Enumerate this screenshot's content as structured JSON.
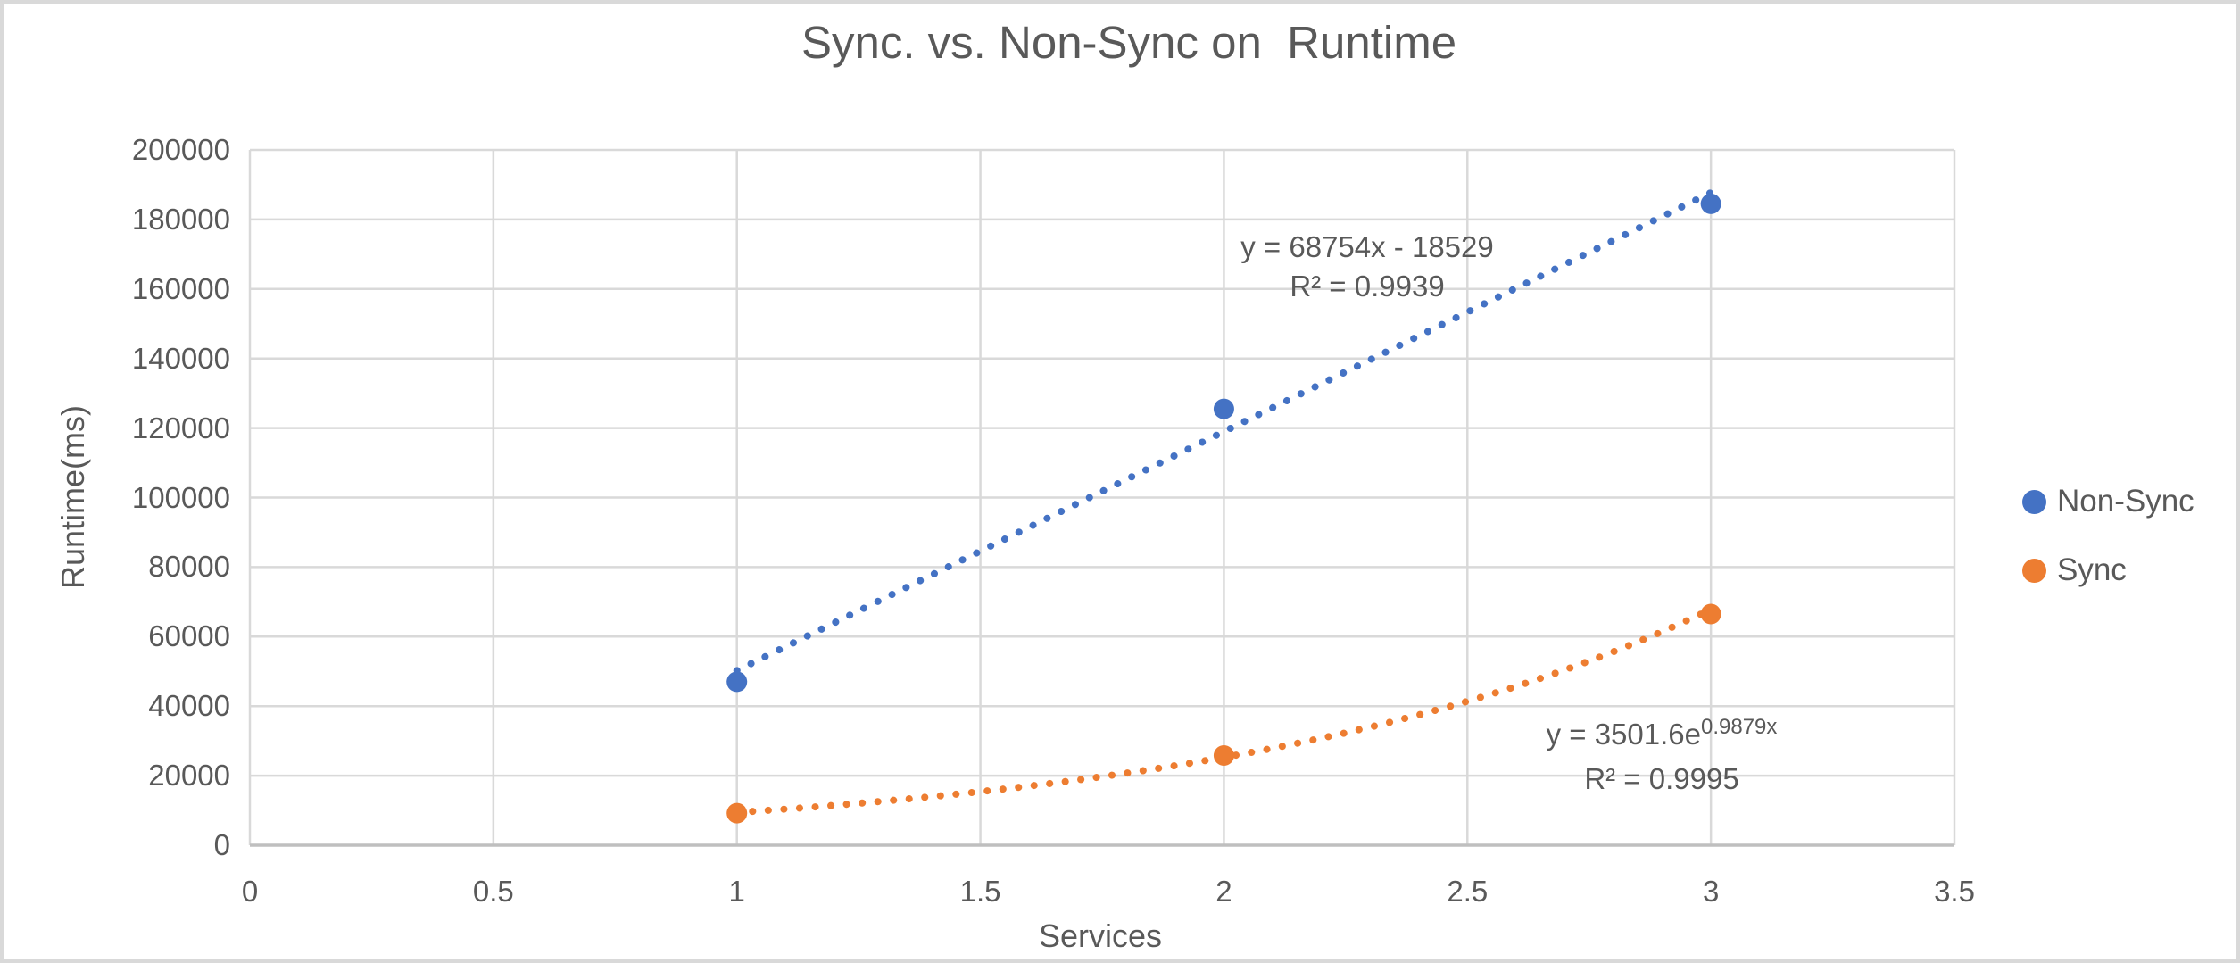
{
  "chart_data": {
    "type": "scatter",
    "title": "Sync. vs. Non-Sync on  Runtime",
    "xlabel": "Services",
    "ylabel": "Runtime(ms)",
    "xlim": [
      0,
      3.5
    ],
    "ylim": [
      0,
      200000
    ],
    "x_ticks": [
      "0",
      "0.5",
      "1",
      "1.5",
      "2",
      "2.5",
      "3",
      "3.5"
    ],
    "y_ticks": [
      "0",
      "20000",
      "40000",
      "60000",
      "80000",
      "100000",
      "120000",
      "140000",
      "160000",
      "180000",
      "200000"
    ],
    "grid": true,
    "legend_position": "right",
    "x": [
      1,
      2,
      3
    ],
    "series": [
      {
        "name": "Non-Sync",
        "color": "#4472C4",
        "values": [
          47000,
          125500,
          184500
        ],
        "trendline": {
          "type": "linear",
          "slope": 68754,
          "intercept": -18529,
          "x_range": [
            1,
            3
          ],
          "equation": "y = 68754x - 18529",
          "r_squared": "R² = 0.9939"
        }
      },
      {
        "name": "Sync",
        "color": "#ED7D31",
        "values": [
          9200,
          25800,
          66500
        ],
        "trendline": {
          "type": "exponential",
          "coefficient": 3501.6,
          "exponent": 0.9879,
          "x_range": [
            1,
            3
          ],
          "equation_base": "y = 3501.6e",
          "equation_exponent": "0.9879x",
          "r_squared": "R² = 0.9995"
        }
      }
    ]
  },
  "legend": {
    "items": [
      {
        "label": "Non-Sync",
        "color": "#4472C4"
      },
      {
        "label": "Sync",
        "color": "#ED7D31"
      }
    ]
  },
  "annotations": {
    "nonsync_line1": "y = 68754x - 18529",
    "nonsync_line2": "R² = 0.9939",
    "sync_line1_base": "y = 3501.6e",
    "sync_line1_exp": "0.9879x",
    "sync_line2": "R² = 0.9995"
  },
  "colors": {
    "text": "#595959",
    "gridline": "#d9d9d9",
    "axis_line": "#bfbfbf",
    "frame_border": "#d9d9d9",
    "background": "#ffffff"
  }
}
